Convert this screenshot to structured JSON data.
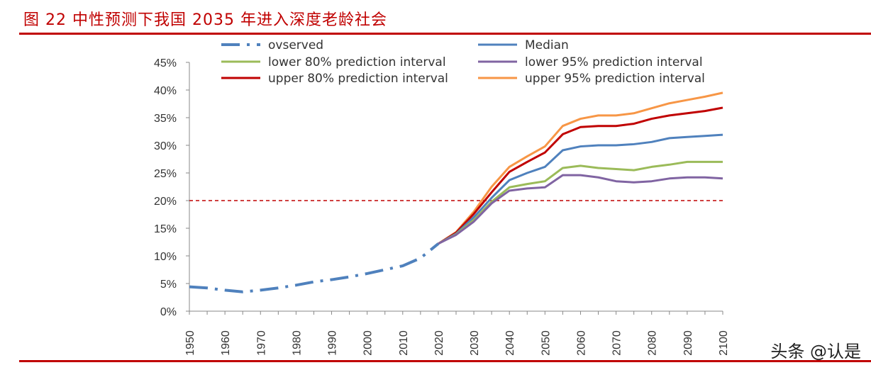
{
  "title": "图 22 中性预测下我国 2035 年进入深度老龄社会",
  "watermark": "头条 @认是",
  "chart_data": {
    "type": "line",
    "xlim": [
      1950,
      2100
    ],
    "ylim": [
      0,
      45
    ],
    "x_ticks": [
      "1950",
      "1960",
      "1970",
      "1980",
      "1990",
      "2000",
      "2010",
      "2020",
      "2030",
      "2040",
      "2050",
      "2060",
      "2070",
      "2080",
      "2090",
      "2100"
    ],
    "y_ticks": [
      "0%",
      "5%",
      "10%",
      "15%",
      "20%",
      "25%",
      "30%",
      "35%",
      "40%",
      "45%"
    ],
    "reference_line": {
      "y": 20,
      "color": "#c00000",
      "style": "dashed"
    },
    "legend_placement": "top",
    "series": [
      {
        "name": "ovserved",
        "color": "#4f81bd",
        "style": "dash-dot",
        "x": [
          1950,
          1955,
          1960,
          1965,
          1970,
          1975,
          1980,
          1985,
          1990,
          1995,
          2000,
          2005,
          2010,
          2015,
          2020
        ],
        "values": [
          4.4,
          4.2,
          3.8,
          3.5,
          3.8,
          4.2,
          4.7,
          5.3,
          5.7,
          6.2,
          6.8,
          7.5,
          8.2,
          9.6,
          12.2
        ]
      },
      {
        "name": "Median",
        "color": "#4f81bd",
        "x": [
          2020,
          2025,
          2030,
          2035,
          2040,
          2045,
          2050,
          2055,
          2060,
          2065,
          2070,
          2075,
          2080,
          2085,
          2090,
          2095,
          2100
        ],
        "values": [
          12.2,
          14,
          17,
          20.5,
          23.7,
          25,
          26.1,
          29.1,
          29.8,
          30,
          30,
          30.2,
          30.6,
          31.3,
          31.5,
          31.7,
          31.9
        ]
      },
      {
        "name": "lower 80% prediction interval",
        "color": "#9bbb59",
        "x": [
          2020,
          2025,
          2030,
          2035,
          2040,
          2045,
          2050,
          2055,
          2060,
          2065,
          2070,
          2075,
          2080,
          2085,
          2090,
          2095,
          2100
        ],
        "values": [
          12.2,
          13.9,
          16.5,
          19.8,
          22.4,
          23,
          23.5,
          25.9,
          26.3,
          25.9,
          25.7,
          25.5,
          26.1,
          26.5,
          27,
          27,
          27
        ]
      },
      {
        "name": "lower 95% prediction interval",
        "color": "#8064a2",
        "x": [
          2020,
          2025,
          2030,
          2035,
          2040,
          2045,
          2050,
          2055,
          2060,
          2065,
          2070,
          2075,
          2080,
          2085,
          2090,
          2095,
          2100
        ],
        "values": [
          12.2,
          13.8,
          16.2,
          19.5,
          21.8,
          22.2,
          22.4,
          24.6,
          24.6,
          24.2,
          23.5,
          23.3,
          23.5,
          24,
          24.2,
          24.2,
          24
        ]
      },
      {
        "name": "upper 80% prediction interval",
        "color": "#c00000",
        "x": [
          2020,
          2025,
          2030,
          2035,
          2040,
          2045,
          2050,
          2055,
          2060,
          2065,
          2070,
          2075,
          2080,
          2085,
          2090,
          2095,
          2100
        ],
        "values": [
          12.2,
          14.2,
          17.6,
          21.5,
          25.2,
          27,
          28.7,
          32,
          33.3,
          33.5,
          33.5,
          33.9,
          34.8,
          35.4,
          35.8,
          36.2,
          36.8
        ]
      },
      {
        "name": "upper 95% prediction interval",
        "color": "#f79646",
        "x": [
          2020,
          2025,
          2030,
          2035,
          2040,
          2045,
          2050,
          2055,
          2060,
          2065,
          2070,
          2075,
          2080,
          2085,
          2090,
          2095,
          2100
        ],
        "values": [
          12.2,
          14.3,
          18,
          22.5,
          26.1,
          28,
          29.8,
          33.5,
          34.8,
          35.4,
          35.4,
          35.8,
          36.7,
          37.6,
          38.2,
          38.8,
          39.5
        ]
      }
    ]
  }
}
